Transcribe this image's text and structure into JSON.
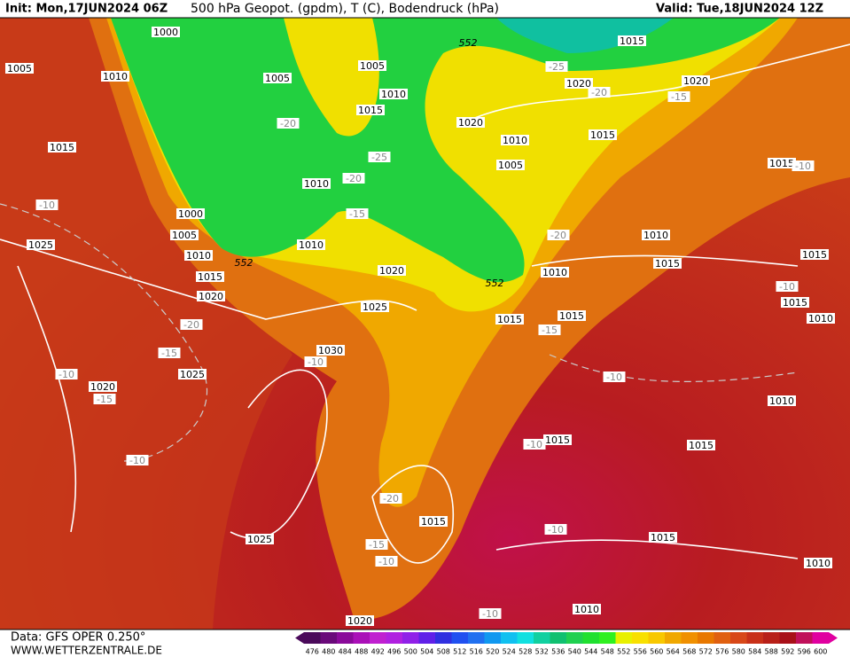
{
  "header": {
    "init": "Init: Mon,17JUN2024 06Z",
    "title": "500 hPa Geopot. (gpdm), T (C), Bodendruck (hPa)",
    "valid": "Valid: Tue,18JUN2024 12Z"
  },
  "footer": {
    "data": "Data: GFS OPER 0.250°",
    "site": "WWW.WETTERZENTRALE.DE"
  },
  "scale": {
    "values": [
      476,
      480,
      484,
      488,
      492,
      496,
      500,
      504,
      508,
      512,
      516,
      520,
      524,
      528,
      532,
      536,
      540,
      544,
      548,
      552,
      556,
      560,
      564,
      568,
      572,
      576,
      580,
      584,
      588,
      592,
      596,
      600
    ],
    "colors": [
      "#4a0a5a",
      "#6a0a7a",
      "#8a0a9a",
      "#aa10b8",
      "#c020d0",
      "#b020e0",
      "#9020e8",
      "#6020e8",
      "#3030e0",
      "#2050f0",
      "#2070f0",
      "#1098f0",
      "#10c0f0",
      "#10e0e0",
      "#10d0a0",
      "#10c070",
      "#20d050",
      "#20e030",
      "#30f020",
      "#e8f000",
      "#f8e000",
      "#f8c800",
      "#f0a800",
      "#f09000",
      "#e87800",
      "#e06010",
      "#d84818",
      "#c83018",
      "#b82018",
      "#a81018",
      "#c0105a",
      "#e000a0"
    ]
  },
  "map_labels": [
    "1000",
    "1005",
    "1010",
    "1005",
    "1005",
    "552",
    "1015",
    "-25",
    "1020",
    "-20",
    "-15",
    "1020",
    "1010",
    "1015",
    "-20",
    "1020",
    "1015",
    "1010",
    "1015",
    "1005",
    "-25",
    "1015",
    "-10",
    "-20",
    "1010",
    "-10",
    "1000",
    "-15",
    "1005",
    "1025",
    "1010",
    "-20",
    "1010",
    "1010",
    "552",
    "1015",
    "1015",
    "1020",
    "1010",
    "1015",
    "552",
    "-10",
    "1015",
    "1020",
    "1025",
    "1015",
    "1015",
    "1010",
    "-20",
    "-15",
    "-15",
    "1030",
    "-10",
    "1025",
    "-10",
    "1020",
    "-15",
    "-10",
    "1010",
    "1015",
    "-10",
    "1015",
    "-10",
    "-20",
    "1015",
    "1025",
    "-15",
    "-10",
    "1015",
    "-10",
    "1010",
    "1010",
    "-10",
    "1020"
  ]
}
